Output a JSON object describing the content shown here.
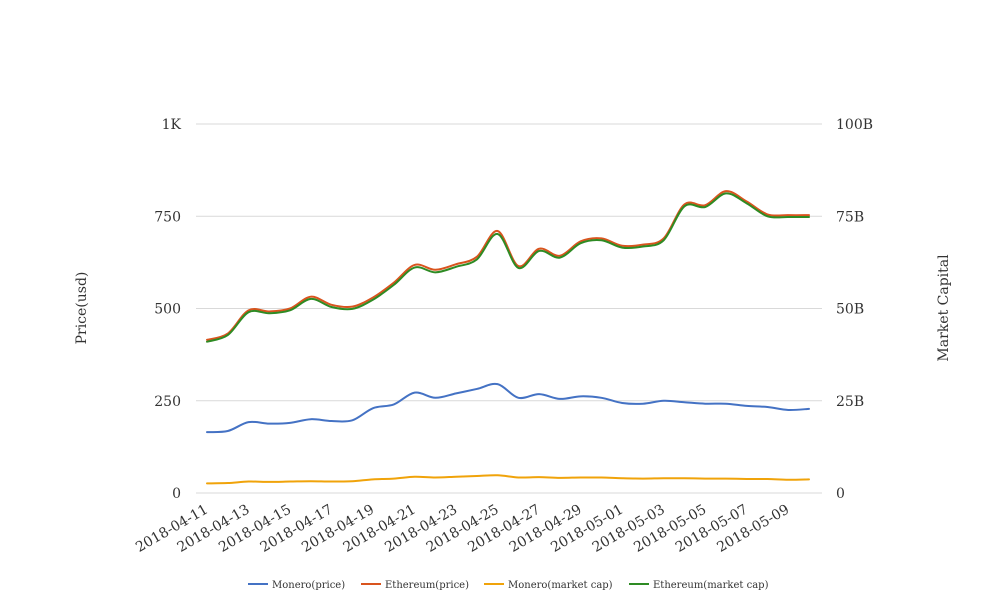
{
  "chart_data": {
    "type": "line",
    "title": "",
    "xlabel": "",
    "ylabel": "Price(usd)",
    "y2label": "Market Capital",
    "ylim": [
      0,
      1000
    ],
    "y2lim": [
      0,
      100000000000
    ],
    "yticks": [
      {
        "value": 0,
        "label": "0"
      },
      {
        "value": 250,
        "label": "250"
      },
      {
        "value": 500,
        "label": "500"
      },
      {
        "value": 750,
        "label": "750"
      },
      {
        "value": 1000,
        "label": "1K"
      }
    ],
    "y2ticks": [
      {
        "value": 0,
        "label": "0"
      },
      {
        "value": 25000000000,
        "label": "25B"
      },
      {
        "value": 50000000000,
        "label": "50B"
      },
      {
        "value": 75000000000,
        "label": "75B"
      },
      {
        "value": 100000000000,
        "label": "100B"
      }
    ],
    "grid": true,
    "legend_position": "bottom",
    "x": [
      "2018-04-11",
      "2018-04-12",
      "2018-04-13",
      "2018-04-14",
      "2018-04-15",
      "2018-04-16",
      "2018-04-17",
      "2018-04-18",
      "2018-04-19",
      "2018-04-20",
      "2018-04-21",
      "2018-04-22",
      "2018-04-23",
      "2018-04-24",
      "2018-04-25",
      "2018-04-26",
      "2018-04-27",
      "2018-04-28",
      "2018-04-29",
      "2018-04-30",
      "2018-05-01",
      "2018-05-02",
      "2018-05-03",
      "2018-05-04",
      "2018-05-05",
      "2018-05-06",
      "2018-05-07",
      "2018-05-08",
      "2018-05-09",
      "2018-05-10"
    ],
    "xtick_labels": [
      "2018-04-11",
      "2018-04-13",
      "2018-04-15",
      "2018-04-17",
      "2018-04-19",
      "2018-04-21",
      "2018-04-23",
      "2018-04-25",
      "2018-04-27",
      "2018-04-29",
      "2018-05-01",
      "2018-05-03",
      "2018-05-05",
      "2018-05-07",
      "2018-05-09"
    ],
    "series": [
      {
        "name": "Monero(price)",
        "axis": "left",
        "color": "#4472c4",
        "values": [
          165,
          168,
          192,
          188,
          190,
          200,
          195,
          197,
          230,
          240,
          272,
          258,
          270,
          282,
          295,
          258,
          268,
          255,
          262,
          258,
          244,
          242,
          250,
          246,
          242,
          242,
          236,
          233,
          225,
          228
        ]
      },
      {
        "name": "Ethereum(price)",
        "axis": "left",
        "color": "#d9541e",
        "values": [
          415,
          432,
          495,
          492,
          500,
          532,
          510,
          505,
          530,
          570,
          618,
          605,
          620,
          640,
          710,
          615,
          662,
          643,
          682,
          690,
          670,
          673,
          690,
          782,
          780,
          818,
          790,
          755,
          753,
          753
        ]
      },
      {
        "name": "Monero(market cap)",
        "axis": "right",
        "color": "#f0a30a",
        "values": [
          2600000000,
          2700000000,
          3100000000,
          3000000000,
          3100000000,
          3200000000,
          3100000000,
          3200000000,
          3700000000,
          3900000000,
          4400000000,
          4200000000,
          4400000000,
          4600000000,
          4800000000,
          4200000000,
          4300000000,
          4100000000,
          4200000000,
          4200000000,
          4000000000,
          3900000000,
          4000000000,
          4000000000,
          3900000000,
          3900000000,
          3800000000,
          3800000000,
          3600000000,
          3700000000
        ]
      },
      {
        "name": "Ethereum(market cap)",
        "axis": "right",
        "color": "#2e8b24",
        "values": [
          41000000000,
          42800000000,
          49000000000,
          48700000000,
          49500000000,
          52600000000,
          50400000000,
          49900000000,
          52400000000,
          56400000000,
          61100000000,
          59800000000,
          61300000000,
          63300000000,
          70200000000,
          61000000000,
          65600000000,
          63800000000,
          67700000000,
          68500000000,
          66500000000,
          66800000000,
          68500000000,
          77700000000,
          77500000000,
          81200000000,
          78500000000,
          75000000000,
          74800000000,
          74800000000
        ]
      }
    ]
  }
}
